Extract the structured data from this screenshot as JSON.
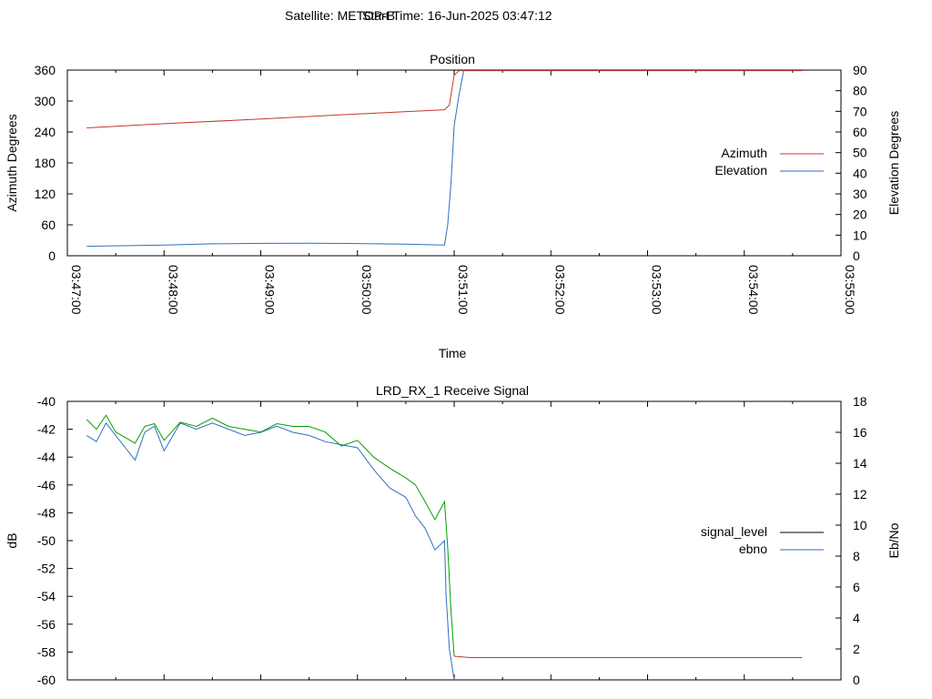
{
  "header": {
    "satellite": "Satellite: METOP-B",
    "start_time": "Start Time: 16-Jun-2025 03:47:12"
  },
  "colors": {
    "azimuth": "#c0392b",
    "elevation": "#2f6fc0",
    "signal_level": "#000000",
    "ebno": "#2f6fc0",
    "signal_trace": "#00a000",
    "ebno_trace": "#2f6fc0"
  },
  "chart_data": [
    {
      "type": "line",
      "title": "Position",
      "xlabel": "Time",
      "ylabel": "Azimuth Degrees",
      "y2label": "Elevation Degrees",
      "xlim": [
        "03:47:00",
        "03:55:00"
      ],
      "ylim": [
        0,
        360
      ],
      "y2lim": [
        0,
        90
      ],
      "x_ticks": [
        "03:47:00",
        "03:48:00",
        "03:49:00",
        "03:50:00",
        "03:51:00",
        "03:52:00",
        "03:53:00",
        "03:54:00",
        "03:55:00"
      ],
      "y_ticks": [
        "0",
        "60",
        "120",
        "180",
        "240",
        "300",
        "360"
      ],
      "y2_ticks": [
        "0",
        "10",
        "20",
        "30",
        "40",
        "50",
        "60",
        "70",
        "80",
        "90"
      ],
      "legend_position": "right",
      "series": [
        {
          "name": "Azimuth",
          "axis": "y",
          "x": [
            "03:47:12",
            "03:48:00",
            "03:49:00",
            "03:50:00",
            "03:50:54",
            "03:50:57",
            "03:51:00",
            "03:51:03",
            "03:52:00",
            "03:53:00",
            "03:54:00",
            "03:54:36"
          ],
          "values": [
            248,
            256,
            265,
            275,
            283,
            292,
            350,
            359,
            359,
            359,
            359,
            359
          ]
        },
        {
          "name": "Elevation",
          "axis": "y2",
          "x": [
            "03:47:12",
            "03:48:00",
            "03:48:30",
            "03:49:00",
            "03:49:30",
            "03:50:00",
            "03:50:30",
            "03:50:54",
            "03:50:56",
            "03:50:58",
            "03:51:00",
            "03:51:03",
            "03:51:06"
          ],
          "values": [
            4.6,
            5.2,
            5.8,
            6.0,
            6.1,
            5.9,
            5.6,
            5.2,
            15,
            35,
            63,
            78,
            90
          ]
        }
      ]
    },
    {
      "type": "line",
      "title": "LRD_RX_1 Receive Signal",
      "ylabel": "dB",
      "y2label": "Eb/No",
      "xlim": [
        "03:47:00",
        "03:55:00"
      ],
      "ylim": [
        -60,
        -40
      ],
      "y2lim": [
        0,
        18
      ],
      "y_ticks": [
        "-40",
        "-42",
        "-44",
        "-46",
        "-48",
        "-50",
        "-52",
        "-54",
        "-56",
        "-58",
        "-60"
      ],
      "y2_ticks": [
        "0",
        "2",
        "4",
        "6",
        "8",
        "10",
        "12",
        "14",
        "16",
        "18"
      ],
      "legend_position": "right",
      "series": [
        {
          "name": "signal_level",
          "axis": "y",
          "x": [
            "03:47:12",
            "03:47:18",
            "03:47:24",
            "03:47:30",
            "03:47:36",
            "03:47:42",
            "03:47:48",
            "03:47:54",
            "03:48:00",
            "03:48:10",
            "03:48:20",
            "03:48:30",
            "03:48:40",
            "03:48:50",
            "03:49:00",
            "03:49:10",
            "03:49:20",
            "03:49:30",
            "03:49:40",
            "03:49:50",
            "03:50:00",
            "03:50:10",
            "03:50:20",
            "03:50:30",
            "03:50:36",
            "03:50:42",
            "03:50:48",
            "03:50:54",
            "03:50:56",
            "03:50:58",
            "03:51:00",
            "03:51:10",
            "03:52:00",
            "03:53:00",
            "03:54:00",
            "03:54:36"
          ],
          "values": [
            -41.3,
            -42.0,
            -41.0,
            -42.2,
            -42.6,
            -43.0,
            -41.8,
            -41.6,
            -42.8,
            -41.5,
            -41.8,
            -41.2,
            -41.8,
            -42.0,
            -42.2,
            -41.6,
            -41.8,
            -41.8,
            -42.2,
            -43.2,
            -42.8,
            -44.0,
            -44.8,
            -45.5,
            -46.0,
            -47.2,
            -48.5,
            -47.2,
            -50.5,
            -55.0,
            -58.3,
            -58.4,
            -58.4,
            -58.4,
            -58.4,
            -58.4
          ]
        },
        {
          "name": "ebno",
          "axis": "y2",
          "x": [
            "03:47:12",
            "03:47:18",
            "03:47:24",
            "03:47:30",
            "03:47:36",
            "03:47:42",
            "03:47:48",
            "03:47:54",
            "03:48:00",
            "03:48:10",
            "03:48:20",
            "03:48:30",
            "03:48:40",
            "03:48:50",
            "03:49:00",
            "03:49:10",
            "03:49:20",
            "03:49:30",
            "03:49:40",
            "03:49:50",
            "03:50:00",
            "03:50:10",
            "03:50:20",
            "03:50:30",
            "03:50:36",
            "03:50:42",
            "03:50:48",
            "03:50:54",
            "03:50:55",
            "03:50:57",
            "03:51:00"
          ],
          "values": [
            15.8,
            15.4,
            16.6,
            15.8,
            15.0,
            14.2,
            16.0,
            16.4,
            14.8,
            16.6,
            16.2,
            16.6,
            16.2,
            15.8,
            16.0,
            16.4,
            16.0,
            15.8,
            15.4,
            15.2,
            15.0,
            13.6,
            12.4,
            11.8,
            10.6,
            9.8,
            8.4,
            9.0,
            5.5,
            2.0,
            0
          ]
        }
      ]
    }
  ]
}
